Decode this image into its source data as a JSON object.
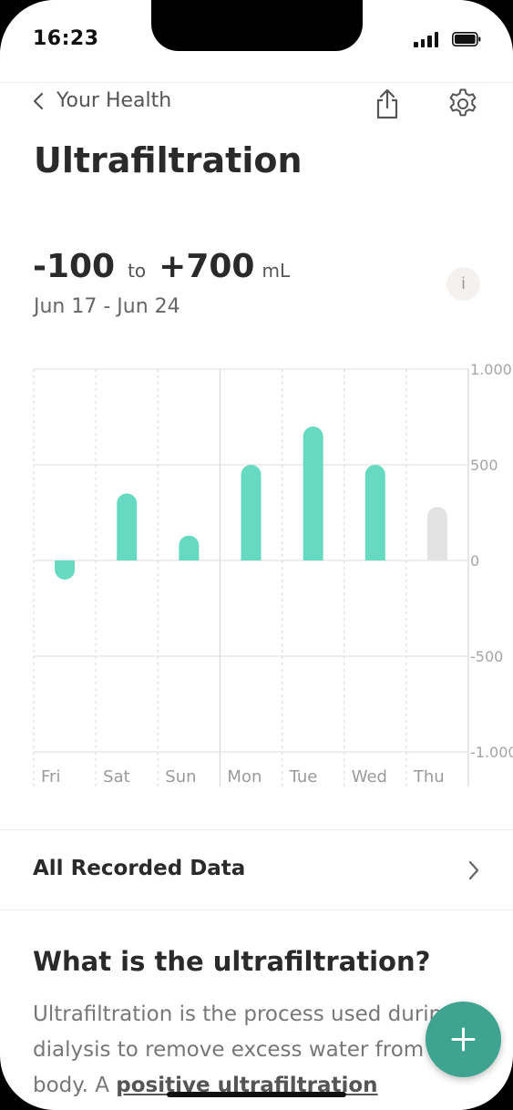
{
  "status_bar": {
    "time": "16:23"
  },
  "nav": {
    "back_label": "Your Health"
  },
  "page": {
    "title": "Ultrafiltration"
  },
  "summary": {
    "min": "-100",
    "to": "to",
    "max": "+700",
    "unit": "mL",
    "date_range": "Jun 17 - Jun 24",
    "info_label": "i"
  },
  "chart_data": {
    "type": "bar",
    "categories": [
      "Fri",
      "Sat",
      "Sun",
      "Mon",
      "Tue",
      "Wed",
      "Thu"
    ],
    "values": [
      -100,
      350,
      130,
      500,
      700,
      500,
      280
    ],
    "highlighted_category": "Thu",
    "ylim": [
      -1000,
      1000
    ],
    "yticks": [
      1000,
      500,
      0,
      -500,
      -1000
    ],
    "ytick_labels": [
      "1.000",
      "500",
      "0",
      "-500",
      "-1.000"
    ],
    "colors": {
      "bar": "#66d9c1",
      "current_bar": "#e3e3e3"
    },
    "grid": true
  },
  "recorded": {
    "label": "All Recorded Data"
  },
  "explainer": {
    "heading": "What is the ultrafiltration?",
    "text": "Ultrafiltration is the process used during dialysis to remove excess water from your body. A ",
    "bold": "positive ultrafiltration"
  },
  "colors": {
    "accent": "#3ea48f",
    "bar": "#66d9c1"
  }
}
